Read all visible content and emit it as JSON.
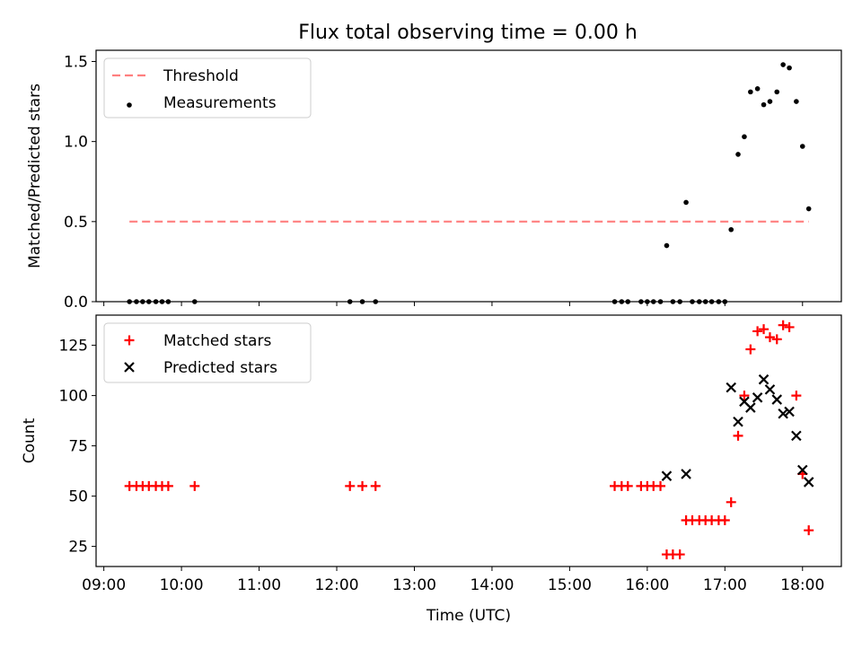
{
  "figure": {
    "title": "Flux total observing time = 0.00 h"
  },
  "chart_data": [
    {
      "type": "scatter",
      "ylabel": "Matched/Predicted stars",
      "xlabel": "",
      "xlim": [
        8.9,
        18.5
      ],
      "ylim": [
        0.0,
        1.57
      ],
      "xticks": [
        9,
        10,
        11,
        12,
        13,
        14,
        15,
        16,
        17,
        18
      ],
      "xtick_labels_shown": false,
      "yticks": [
        0.0,
        0.5,
        1.0,
        1.5
      ],
      "ytick_labels": [
        "0.0",
        "0.5",
        "1.0",
        "1.5"
      ],
      "legend_position": "top-left",
      "series": [
        {
          "name": "Threshold",
          "kind": "line",
          "style": "dashed",
          "color": "#ff7f7f",
          "x": [
            9.33,
            18.08
          ],
          "y": [
            0.5,
            0.5
          ]
        },
        {
          "name": "Measurements",
          "kind": "scatter",
          "marker": "dot",
          "color": "#000000",
          "x": [
            9.33,
            9.42,
            9.5,
            9.58,
            9.67,
            9.75,
            9.83,
            10.17,
            12.17,
            12.33,
            12.5,
            15.58,
            15.67,
            15.75,
            15.92,
            16.0,
            16.08,
            16.17,
            16.25,
            16.33,
            16.42,
            16.5,
            16.58,
            16.67,
            16.75,
            16.83,
            16.92,
            17.0,
            17.08,
            17.17,
            17.25,
            17.33,
            17.42,
            17.5,
            17.58,
            17.67,
            17.75,
            17.83,
            17.92,
            18.0,
            18.08
          ],
          "y": [
            0,
            0,
            0,
            0,
            0,
            0,
            0,
            0,
            0,
            0,
            0,
            0,
            0,
            0,
            0,
            0,
            0,
            0,
            0.35,
            0,
            0,
            0.62,
            0,
            0,
            0,
            0,
            0,
            0,
            0.45,
            0.92,
            1.03,
            1.31,
            1.33,
            1.23,
            1.25,
            1.31,
            1.48,
            1.46,
            1.25,
            0.97,
            0.58
          ]
        }
      ]
    },
    {
      "type": "scatter",
      "ylabel": "Count",
      "xlabel": "Time (UTC)",
      "xlim": [
        8.9,
        18.5
      ],
      "ylim": [
        15,
        140
      ],
      "xticks": [
        9,
        10,
        11,
        12,
        13,
        14,
        15,
        16,
        17,
        18
      ],
      "xtick_labels": [
        "09:00",
        "10:00",
        "11:00",
        "12:00",
        "13:00",
        "14:00",
        "15:00",
        "16:00",
        "17:00",
        "18:00"
      ],
      "yticks": [
        25,
        50,
        75,
        100,
        125
      ],
      "ytick_labels": [
        "25",
        "50",
        "75",
        "100",
        "125"
      ],
      "legend_position": "top-left",
      "series": [
        {
          "name": "Matched stars",
          "kind": "scatter",
          "marker": "plus",
          "color": "#ff0000",
          "x": [
            9.33,
            9.42,
            9.5,
            9.58,
            9.67,
            9.75,
            9.83,
            10.17,
            12.17,
            12.33,
            12.5,
            15.58,
            15.67,
            15.75,
            15.92,
            16.0,
            16.08,
            16.17,
            16.25,
            16.33,
            16.42,
            16.5,
            16.58,
            16.67,
            16.75,
            16.83,
            16.92,
            17.0,
            17.08,
            17.17,
            17.25,
            17.33,
            17.42,
            17.5,
            17.58,
            17.67,
            17.75,
            17.83,
            17.92,
            18.0,
            18.08
          ],
          "y": [
            55,
            55,
            55,
            55,
            55,
            55,
            55,
            55,
            55,
            55,
            55,
            55,
            55,
            55,
            55,
            55,
            55,
            55,
            21,
            21,
            21,
            38,
            38,
            38,
            38,
            38,
            38,
            38,
            47,
            80,
            100,
            123,
            132,
            133,
            129,
            128,
            135,
            134,
            100,
            61,
            33
          ]
        },
        {
          "name": "Predicted stars",
          "kind": "scatter",
          "marker": "x",
          "color": "#000000",
          "x": [
            16.25,
            16.5,
            17.08,
            17.17,
            17.25,
            17.33,
            17.42,
            17.5,
            17.58,
            17.67,
            17.75,
            17.83,
            17.92,
            18.0,
            18.08
          ],
          "y": [
            60,
            61,
            104,
            87,
            97,
            94,
            99,
            108,
            103,
            98,
            91,
            92,
            80,
            63,
            57
          ]
        }
      ]
    }
  ]
}
